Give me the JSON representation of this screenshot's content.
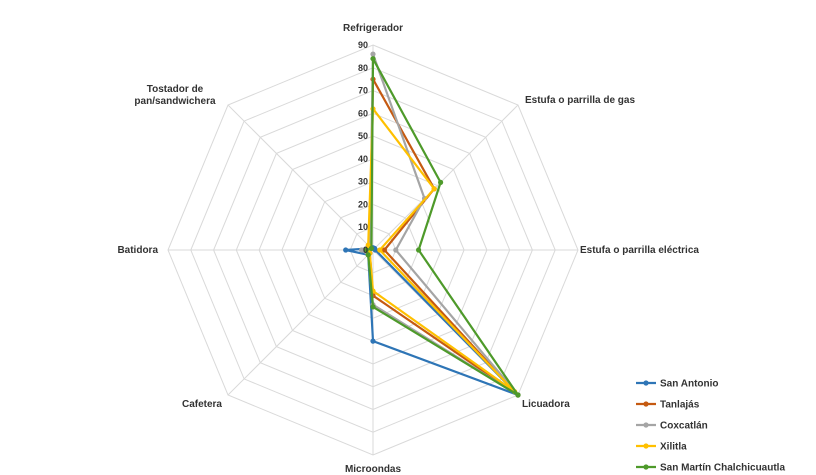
{
  "chart_data": {
    "type": "radar",
    "categories": [
      "Refrigerador",
      "Estufa o parrilla de gas",
      "Estufa o parrilla eléctrica",
      "Licuadora",
      "Microondas",
      "Cafetera",
      "Batidora",
      "Tostador de pan/sandwichera"
    ],
    "ticks": [
      "0",
      "10",
      "20",
      "30",
      "40",
      "50",
      "60",
      "70",
      "80",
      "90"
    ],
    "rlim": [
      0,
      90
    ],
    "grid": true,
    "legend_position": "bottom-right",
    "series": [
      {
        "name": "San Antonio",
        "color": "#2E75B6",
        "values": [
          1,
          1,
          1,
          90,
          40,
          3,
          12,
          1
        ]
      },
      {
        "name": "Tanlajás",
        "color": "#C55A11",
        "values": [
          75,
          38,
          5,
          90,
          20,
          2,
          2,
          2
        ]
      },
      {
        "name": "Coxcatlán",
        "color": "#A5A5A5",
        "values": [
          86,
          32,
          10,
          90,
          24,
          3,
          5,
          2
        ]
      },
      {
        "name": "Xilitla",
        "color": "#FFC000",
        "values": [
          62,
          38,
          3,
          88,
          18,
          2,
          2,
          3
        ]
      },
      {
        "name": "San Martín Chalchicuautla",
        "color": "#4E9A2A",
        "values": [
          84,
          42,
          20,
          90,
          25,
          3,
          3,
          1
        ]
      }
    ]
  }
}
